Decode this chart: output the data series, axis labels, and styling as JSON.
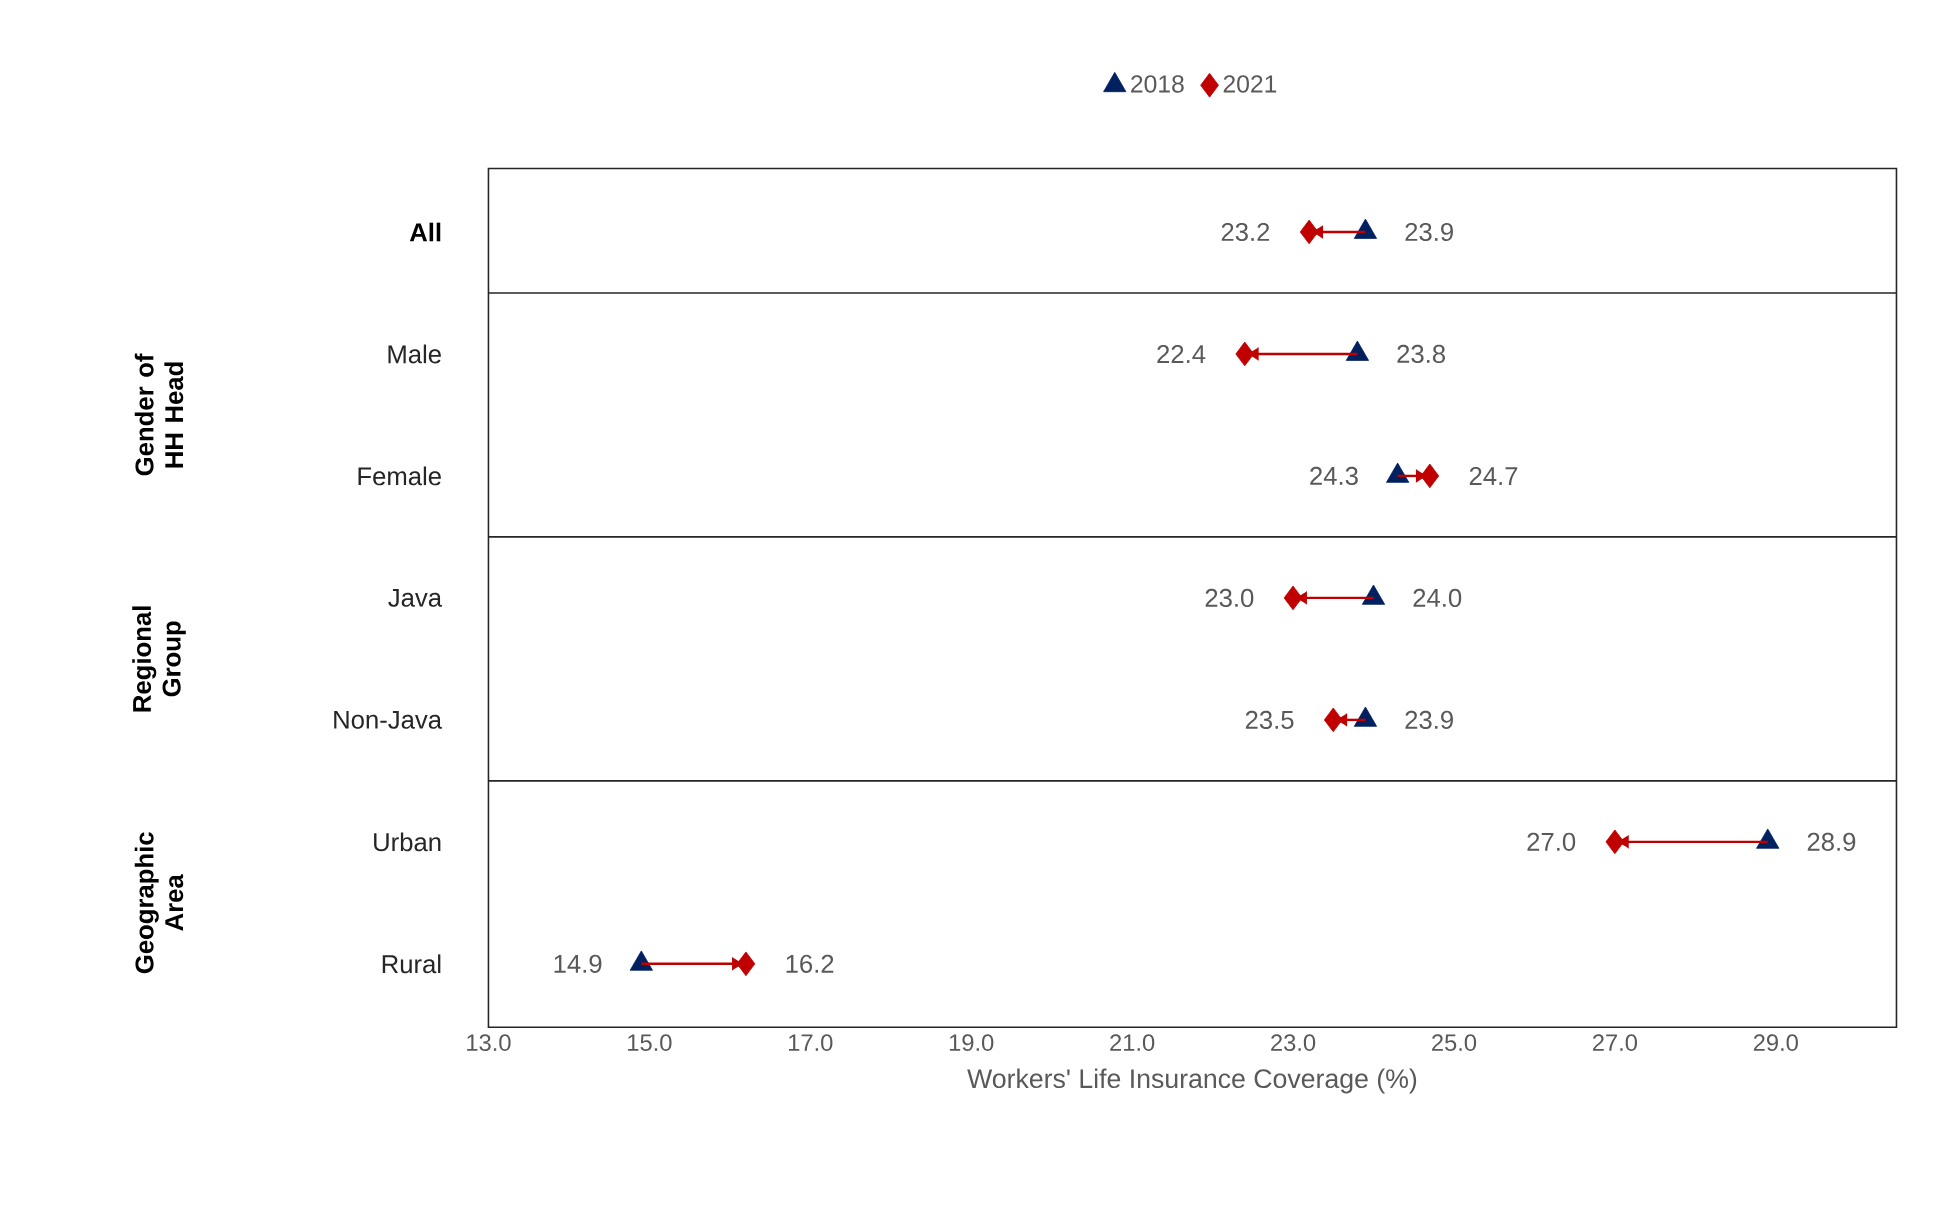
{
  "chart_data": {
    "type": "scatter",
    "orientation": "horizontal",
    "categories": [
      "All",
      "Male",
      "Female",
      "Java",
      "Non-Java",
      "Urban",
      "Rural"
    ],
    "series": [
      {
        "name": "2018",
        "color": "#002060",
        "marker": "triangle",
        "values": [
          23.9,
          23.8,
          24.3,
          24.0,
          23.9,
          28.9,
          14.9
        ],
        "value_labels": [
          "23.9",
          "23.8",
          "24.3",
          "24.0",
          "23.9",
          "28.9",
          "14.9"
        ]
      },
      {
        "name": "2021",
        "color": "#c00000",
        "marker": "diamond",
        "values": [
          23.2,
          22.4,
          24.7,
          23.0,
          23.5,
          27.0,
          16.2
        ],
        "value_labels": [
          "23.2",
          "22.4",
          "24.7",
          "23.0",
          "23.5",
          "27.0",
          "16.2"
        ]
      }
    ],
    "xlabel": "Workers' Life Insurance Coverage (%)",
    "annotations": [
      "Gender of HH Head",
      "Regional Group",
      "Geographic Area"
    ],
    "xlim": [
      13,
      30.5
    ],
    "xticks": [
      {
        "value": 13,
        "label": "13.0"
      },
      {
        "value": 15,
        "label": "15.0"
      },
      {
        "value": 17,
        "label": "17.0"
      },
      {
        "value": 19,
        "label": "19.0"
      },
      {
        "value": 21,
        "label": "21.0"
      },
      {
        "value": 23,
        "label": "23.0"
      },
      {
        "value": 25,
        "label": "25.0"
      },
      {
        "value": 27,
        "label": "27.0"
      },
      {
        "value": 29,
        "label": "29.0"
      }
    ],
    "legend": "top",
    "grid": false
  }
}
